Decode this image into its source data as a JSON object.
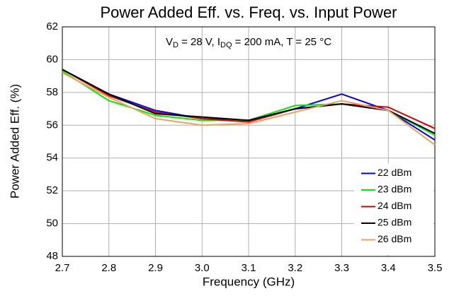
{
  "chart_data": {
    "type": "line",
    "title": "Power Added Eff. vs. Freq. vs. Input Power",
    "annotation": [
      {
        "text": "V"
      },
      {
        "text": "D",
        "sub": true
      },
      {
        "text": " = 28 V, I"
      },
      {
        "text": "DQ",
        "sub": true
      },
      {
        "text": " = 200 mA, T = 25 °C"
      }
    ],
    "x_label": "Frequency (GHz)",
    "y_label": "Power Added Eff. (%)",
    "x": [
      2.7,
      2.8,
      2.9,
      3.0,
      3.1,
      3.2,
      3.3,
      3.4,
      3.5
    ],
    "series": [
      {
        "name": "22 dBm",
        "color": "#0000ee",
        "values": [
          59.4,
          57.9,
          56.9,
          56.4,
          56.3,
          57.0,
          57.9,
          56.9,
          55.1
        ]
      },
      {
        "name": "23 dBm",
        "color": "#00ee00",
        "values": [
          59.3,
          57.5,
          56.6,
          56.3,
          56.3,
          57.2,
          57.3,
          56.9,
          55.4
        ]
      },
      {
        "name": "24 dBm",
        "color": "#dd0000",
        "values": [
          59.4,
          57.8,
          56.8,
          56.4,
          56.2,
          57.0,
          57.3,
          57.1,
          55.8
        ]
      },
      {
        "name": "25 dBm",
        "color": "#000000",
        "values": [
          59.4,
          57.9,
          56.7,
          56.5,
          56.3,
          57.0,
          57.3,
          56.9,
          55.5
        ]
      },
      {
        "name": "26 dBm",
        "color": "#f0a060",
        "values": [
          59.2,
          57.7,
          56.4,
          56.0,
          56.1,
          56.8,
          57.5,
          56.9,
          54.8
        ]
      }
    ],
    "xlim": [
      2.7,
      3.5
    ],
    "xticks": [
      2.7,
      2.8,
      2.9,
      {
        "value": 3.0,
        "label": "3.0"
      },
      3.1,
      3.2,
      3.3,
      3.4,
      3.5
    ],
    "ylim": [
      48,
      62
    ],
    "yticks": [
      48,
      50,
      52,
      54,
      56,
      58,
      60,
      62
    ],
    "grid": true,
    "legend": "lower right"
  }
}
